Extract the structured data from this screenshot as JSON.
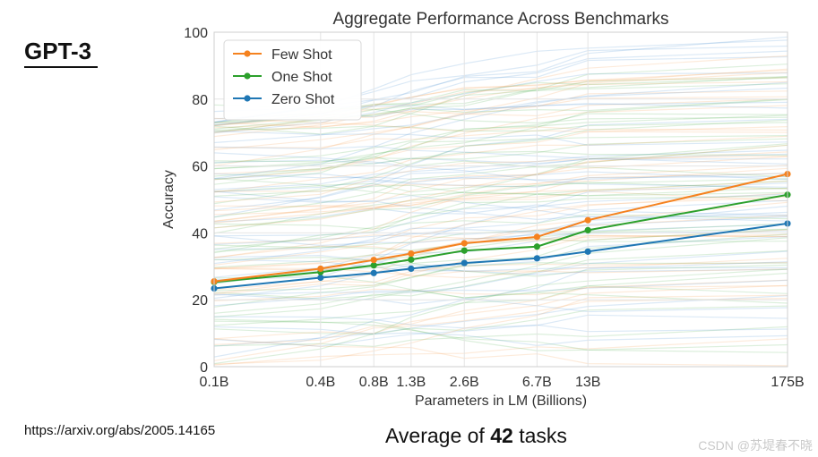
{
  "slide": {
    "heading": "GPT-3",
    "source_url": "https://arxiv.org/abs/2005.14165",
    "caption_prefix": "Average of ",
    "caption_number": "42",
    "caption_suffix": " tasks",
    "watermark": "CSDN @苏堤春不晓"
  },
  "chart_data": {
    "type": "line",
    "title": "Aggregate Performance Across Benchmarks",
    "xlabel": "Parameters in LM (Billions)",
    "ylabel": "Accuracy",
    "x_params_billions": [
      0.1,
      0.4,
      0.8,
      1.3,
      2.6,
      6.7,
      13,
      175
    ],
    "categories": [
      "0.1B",
      "0.4B",
      "0.8B",
      "1.3B",
      "2.6B",
      "6.7B",
      "13B",
      "175B"
    ],
    "ylim": [
      0,
      100
    ],
    "yticks": [
      0,
      20,
      40,
      60,
      80,
      100
    ],
    "x_scale": "log",
    "grid": true,
    "legend_position": "top-left",
    "series": [
      {
        "name": "Few Shot",
        "color": "#f5821f",
        "values": [
          25.5,
          29.3,
          31.9,
          33.8,
          36.9,
          38.8,
          43.8,
          57.6
        ]
      },
      {
        "name": "One Shot",
        "color": "#2ca02c",
        "values": [
          25.3,
          28.3,
          30.3,
          32.0,
          34.7,
          35.9,
          40.8,
          51.4
        ]
      },
      {
        "name": "Zero Shot",
        "color": "#1f77b4",
        "values": [
          23.4,
          26.6,
          28.0,
          29.3,
          31.0,
          32.4,
          34.4,
          42.8
        ]
      }
    ],
    "background_tasks": {
      "count": 42,
      "colors": [
        "#f5a35b",
        "#5fb85f",
        "#5a9bd4"
      ]
    }
  }
}
